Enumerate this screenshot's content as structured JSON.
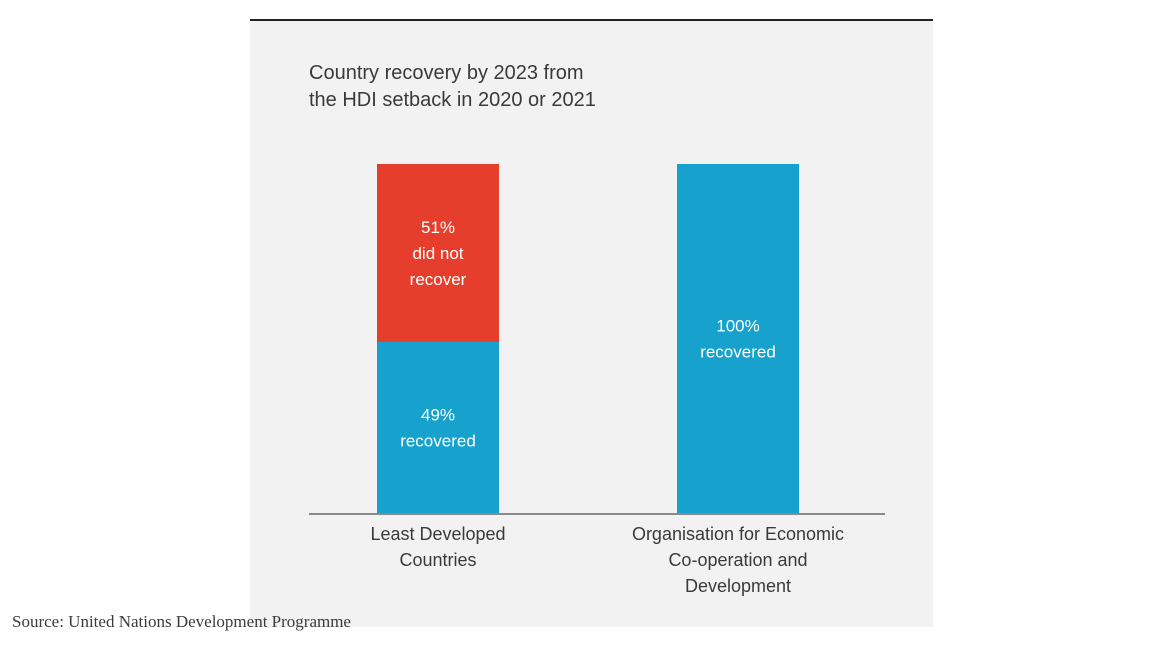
{
  "chart_data": {
    "type": "bar",
    "stacked": true,
    "title_lines": [
      "Country recovery by 2023 from",
      "the HDI setback in 2020 or 2021"
    ],
    "categories": [
      {
        "lines": [
          "Least Developed",
          "Countries"
        ]
      },
      {
        "lines": [
          "Organisation for Economic",
          "Co-operation and",
          "Development"
        ]
      }
    ],
    "series": [
      {
        "name": "recovered",
        "color": "#16a2cc",
        "values": [
          49,
          100
        ],
        "labels": [
          [
            "49%",
            "recovered"
          ],
          [
            "100%",
            "recovered"
          ]
        ]
      },
      {
        "name": "did not recover",
        "color": "#e63e2c",
        "values": [
          51,
          0
        ],
        "labels": [
          [
            "51%",
            "did not",
            "recover"
          ],
          []
        ]
      }
    ],
    "ylim": [
      0,
      100
    ],
    "grid": false,
    "legend": "none"
  },
  "source": "Source: United Nations Development Programme"
}
